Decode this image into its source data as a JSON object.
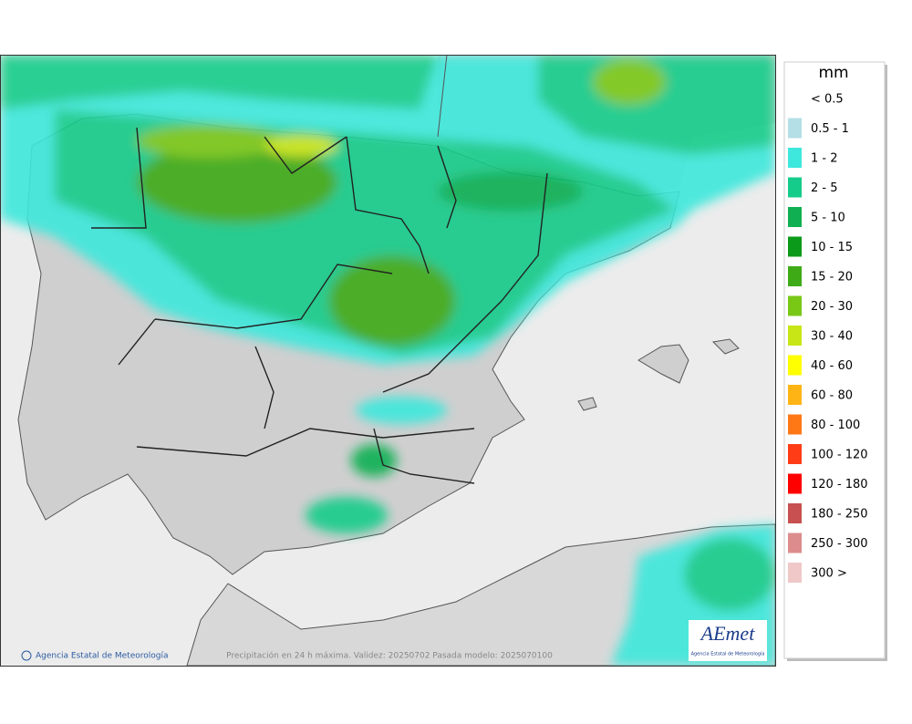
{
  "map": {
    "credit": "Agencia Estatal de Meteorología",
    "caption": "Precipitación en 24 h máxima. Validez: 20250702 Pasada modelo: 2025070100",
    "logo": {
      "text": "AEmet",
      "subtitle": "Agencia Estatal de Meteorología"
    }
  },
  "legend": {
    "title": "mm",
    "items": [
      {
        "label": "< 0.5",
        "color": "#ffffff"
      },
      {
        "label": "0.5 - 1",
        "color": "#b4dfe6"
      },
      {
        "label": "1 - 2",
        "color": "#3ee8dc"
      },
      {
        "label": "2 - 5",
        "color": "#16cc8a"
      },
      {
        "label": "5 - 10",
        "color": "#10b052"
      },
      {
        "label": "10 - 15",
        "color": "#0c9a1a"
      },
      {
        "label": "15 - 20",
        "color": "#3eaa16"
      },
      {
        "label": "20 - 30",
        "color": "#7ac816"
      },
      {
        "label": "30 - 40",
        "color": "#c8e616"
      },
      {
        "label": "40 - 60",
        "color": "#ffff00"
      },
      {
        "label": "60 - 80",
        "color": "#ffb416"
      },
      {
        "label": "80 - 100",
        "color": "#ff7816"
      },
      {
        "label": "100 - 120",
        "color": "#ff3c16"
      },
      {
        "label": "120 - 180",
        "color": "#ff0000"
      },
      {
        "label": "180 - 250",
        "color": "#c85050"
      },
      {
        "label": "250 - 300",
        "color": "#dc8c8c"
      },
      {
        "label": "300 >",
        "color": "#f0c8c8"
      }
    ]
  }
}
